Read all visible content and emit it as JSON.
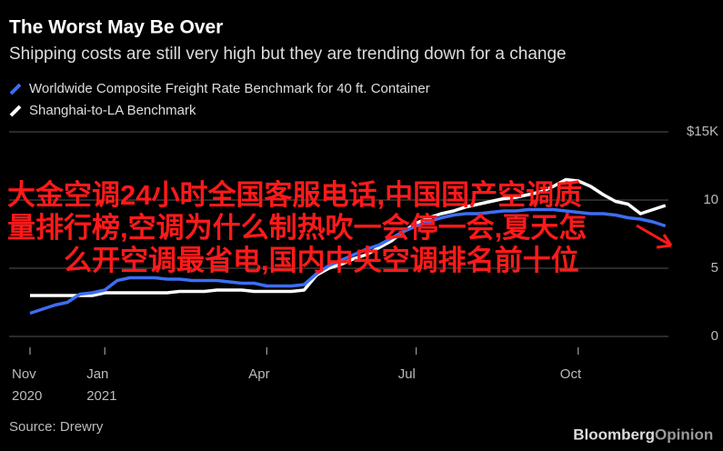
{
  "chart_data": {
    "type": "line",
    "title": "The Worst May Be Over",
    "subtitle": "Shipping costs are still very high but they are trending down for a change",
    "categories": [
      "Nov 2020",
      null,
      null,
      null,
      null,
      null,
      "Jan 2021",
      null,
      null,
      null,
      null,
      null,
      null,
      null,
      null,
      null,
      null,
      null,
      null,
      "Apr",
      null,
      null,
      null,
      null,
      null,
      null,
      null,
      null,
      null,
      null,
      null,
      "Jul",
      null,
      null,
      null,
      null,
      null,
      null,
      null,
      null,
      null,
      null,
      null,
      null,
      "Oct",
      null,
      null,
      null,
      null,
      null,
      null,
      null
    ],
    "series": [
      {
        "name": "Worldwide Composite Freight Rate Benchmark for 40 ft. Container",
        "color": "#3d6df2",
        "values": [
          1.7,
          2.0,
          2.3,
          2.5,
          3.1,
          3.2,
          3.4,
          4.1,
          4.3,
          4.3,
          4.3,
          4.2,
          4.2,
          4.1,
          4.1,
          4.1,
          4.0,
          3.9,
          3.9,
          3.7,
          3.7,
          3.7,
          3.8,
          4.6,
          5.2,
          5.6,
          6.0,
          6.4,
          6.7,
          7.2,
          7.7,
          8.1,
          8.4,
          8.7,
          8.9,
          9.0,
          9.0,
          9.1,
          9.2,
          9.2,
          9.3,
          9.3,
          9.3,
          9.2,
          9.1,
          9.0,
          9.0,
          8.9,
          8.7,
          8.6,
          8.4,
          8.1
        ]
      },
      {
        "name": "Shanghai-to-LA Benchmark",
        "color": "#ffffff",
        "values": [
          3.0,
          3.0,
          3.0,
          3.0,
          3.0,
          3.0,
          3.2,
          3.2,
          3.2,
          3.2,
          3.2,
          3.2,
          3.3,
          3.3,
          3.3,
          3.4,
          3.4,
          3.4,
          3.3,
          3.3,
          3.3,
          3.3,
          3.4,
          4.5,
          5.0,
          5.3,
          5.7,
          6.0,
          6.5,
          7.0,
          7.7,
          8.3,
          8.7,
          9.0,
          9.2,
          9.5,
          9.7,
          9.9,
          10.1,
          10.2,
          10.4,
          10.6,
          11.0,
          11.5,
          11.4,
          11.0,
          10.4,
          9.9,
          9.7,
          9.0,
          9.3,
          9.6
        ]
      }
    ],
    "ylim": [
      0,
      15
    ],
    "yticks": [
      0,
      5,
      10,
      {
        "value": 15,
        "label": "$15K"
      }
    ],
    "grid": true,
    "source": "Source: Drewry",
    "brand": {
      "name": "Bloomberg",
      "suffix": "Opinion"
    },
    "overlay_text": [
      "大金空调24小时全国客服电话,中国国产空调质",
      "量排行榜,空调为什么制热吹一会停一会,夏天怎",
      "么开空调最省电,国内中央空调排名前十位"
    ]
  }
}
